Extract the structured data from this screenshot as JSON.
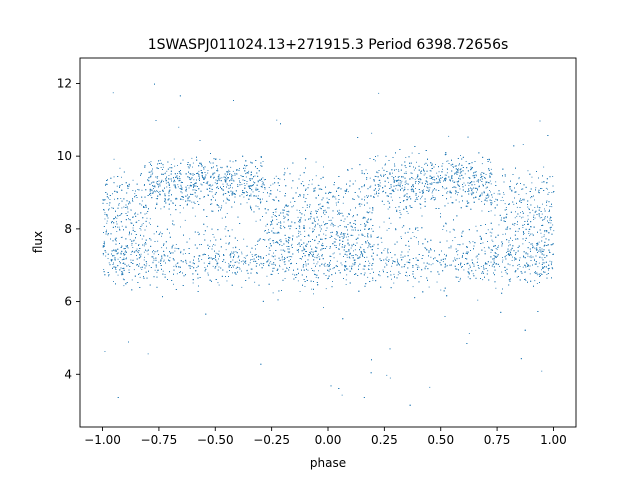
{
  "chart_data": {
    "type": "scatter",
    "title": "1SWASPJ011024.13+271915.3 Period 6398.72656s",
    "xlabel": "phase",
    "ylabel": "flux",
    "xlim": [
      -1.1,
      1.1
    ],
    "ylim": [
      2.55,
      12.7
    ],
    "xticks": [
      -1.0,
      -0.75,
      -0.5,
      -0.25,
      0.0,
      0.25,
      0.5,
      0.75,
      1.0
    ],
    "xtick_labels": [
      "−1.00",
      "−0.75",
      "−0.50",
      "−0.25",
      "0.00",
      "0.25",
      "0.50",
      "0.75",
      "1.00"
    ],
    "yticks": [
      4,
      6,
      8,
      10,
      12
    ],
    "ytick_labels": [
      "4",
      "6",
      "8",
      "10",
      "12"
    ],
    "grid": false,
    "marker_color": "#1f77b4",
    "series": [
      {
        "description_of_distribution": "phase-folded light curve repeated over two cycles; dense band near 7.1 with a second dense band near 9.3 between phase ~-0.8 to -0.3 and ~0.2 to 0.7; sparse outliers 3 to 12",
        "baseline_flux": 7.1,
        "upper_band_flux": 9.3,
        "upper_band_phase_ranges": [
          [
            -0.8,
            -0.28
          ],
          [
            0.2,
            0.72
          ]
        ],
        "outlier_range": [
          3.0,
          12.2
        ]
      }
    ]
  }
}
